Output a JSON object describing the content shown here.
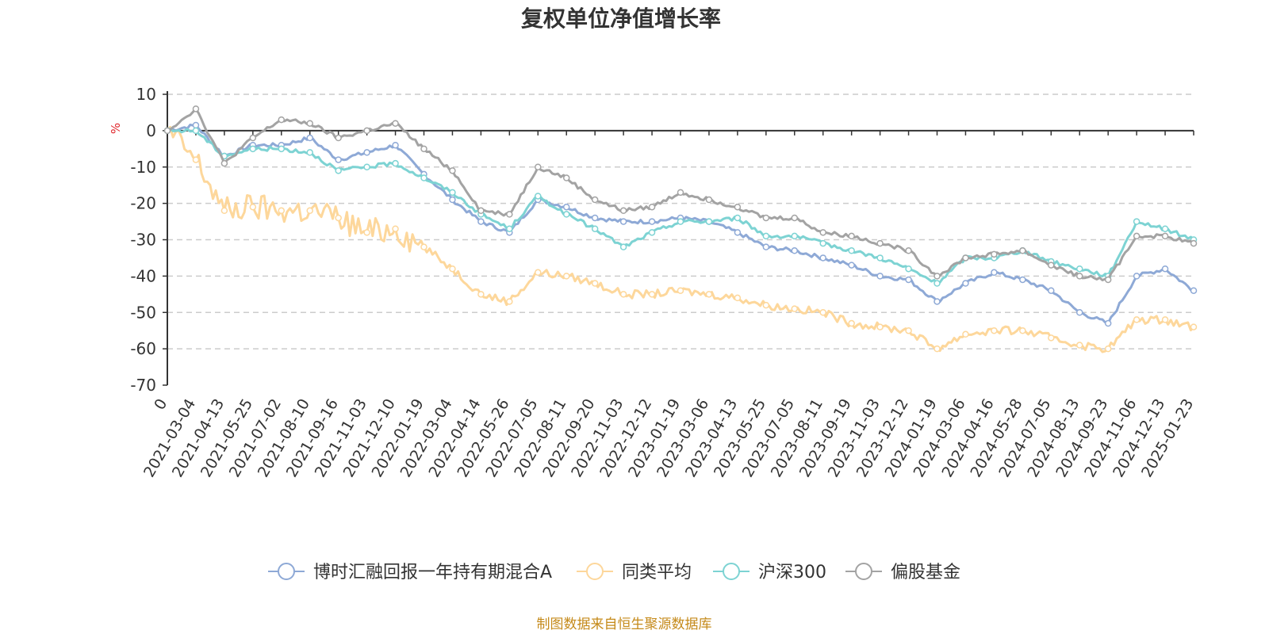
{
  "chart_data": {
    "type": "line",
    "title": "复权单位净值增长率",
    "ylabel": "%",
    "xlabel": "",
    "ylim": [
      -70,
      10
    ],
    "yticks": [
      10,
      0,
      -10,
      -20,
      -30,
      -40,
      -50,
      -60,
      -70
    ],
    "categories": [
      "0",
      "2021-03-04",
      "2021-04-13",
      "2021-05-25",
      "2021-07-02",
      "2021-08-10",
      "2021-09-16",
      "2021-11-03",
      "2021-12-10",
      "2022-01-19",
      "2022-03-04",
      "2022-04-14",
      "2022-05-26",
      "2022-07-05",
      "2022-08-11",
      "2022-09-20",
      "2022-11-03",
      "2022-12-12",
      "2023-01-19",
      "2023-03-06",
      "2023-04-13",
      "2023-05-25",
      "2023-07-05",
      "2023-08-11",
      "2023-09-19",
      "2023-11-03",
      "2023-12-12",
      "2024-01-19",
      "2024-03-06",
      "2024-04-16",
      "2024-05-28",
      "2024-07-05",
      "2024-08-13",
      "2024-09-23",
      "2024-11-06",
      "2024-12-13",
      "2025-01-23"
    ],
    "series": [
      {
        "name": "博时汇融回报一年持有期混合A",
        "color": "#8ea9d6",
        "values": [
          0,
          1.5,
          -7,
          -4,
          -4,
          -2,
          -8,
          -6,
          -4,
          -12,
          -19,
          -25,
          -28,
          -19,
          -21,
          -24,
          -25,
          -25,
          -24,
          -25,
          -28,
          -32,
          -33,
          -35,
          -37,
          -40,
          -41,
          -47,
          -42,
          -39,
          -41,
          -44,
          -50,
          -53,
          -40,
          -38,
          -44
        ]
      },
      {
        "name": "同类平均",
        "color": "#fdd79b",
        "values": [
          0,
          -8,
          -22,
          -21,
          -22,
          -22,
          -24,
          -28,
          -27,
          -32,
          -38,
          -45,
          -47,
          -39,
          -40,
          -42,
          -45,
          -45,
          -44,
          -45,
          -46,
          -48,
          -49,
          -50,
          -53,
          -54,
          -55,
          -60,
          -56,
          -55,
          -55,
          -57,
          -59,
          -60,
          -52,
          -52,
          -54
        ]
      },
      {
        "name": "沪深300",
        "color": "#7dd3d3",
        "values": [
          0,
          0,
          -7,
          -5,
          -5,
          -6,
          -11,
          -10,
          -9,
          -13,
          -17,
          -23,
          -27,
          -18,
          -23,
          -27,
          -32,
          -28,
          -25,
          -25,
          -24,
          -29,
          -29,
          -31,
          -33,
          -35,
          -38,
          -42,
          -35,
          -35,
          -33,
          -36,
          -38,
          -40,
          -25,
          -27,
          -30
        ]
      },
      {
        "name": "偏股基金",
        "color": "#a3a3a3",
        "values": [
          0,
          6,
          -9,
          -2,
          3,
          2,
          -2,
          0,
          2,
          -5,
          -11,
          -22,
          -23,
          -10,
          -13,
          -19,
          -22,
          -21,
          -17,
          -19,
          -21,
          -24,
          -24,
          -28,
          -29,
          -31,
          -33,
          -40,
          -35,
          -34,
          -33,
          -37,
          -40,
          -41,
          -29,
          -29,
          -31
        ]
      }
    ],
    "legend_position": "bottom-center"
  },
  "source_text": "制图数据来自恒生聚源数据库"
}
